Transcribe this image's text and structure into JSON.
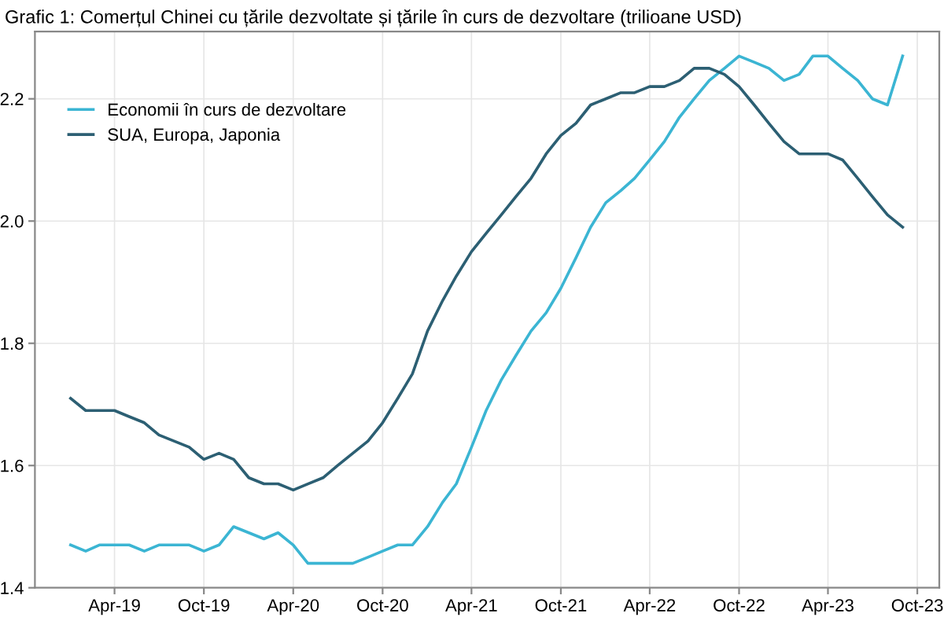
{
  "chart_data": {
    "type": "line",
    "title": "Grafic 1: Comerțul Chinei cu țările dezvoltate și țările în curs de dezvoltare (trilioane USD)",
    "x": [
      "2019-01",
      "2019-02",
      "2019-03",
      "2019-04",
      "2019-05",
      "2019-06",
      "2019-07",
      "2019-08",
      "2019-09",
      "2019-10",
      "2019-11",
      "2019-12",
      "2020-01",
      "2020-02",
      "2020-03",
      "2020-04",
      "2020-05",
      "2020-06",
      "2020-07",
      "2020-08",
      "2020-09",
      "2020-10",
      "2020-11",
      "2020-12",
      "2021-01",
      "2021-02",
      "2021-03",
      "2021-04",
      "2021-05",
      "2021-06",
      "2021-07",
      "2021-08",
      "2021-09",
      "2021-10",
      "2021-11",
      "2021-12",
      "2022-01",
      "2022-02",
      "2022-03",
      "2022-04",
      "2022-05",
      "2022-06",
      "2022-07",
      "2022-08",
      "2022-09",
      "2022-10",
      "2022-11",
      "2022-12",
      "2023-01",
      "2023-02",
      "2023-03",
      "2023-04",
      "2023-05",
      "2023-06",
      "2023-07",
      "2023-08",
      "2023-09"
    ],
    "series": [
      {
        "name": "Economii în curs de dezvoltare",
        "color": "#3bb5d3",
        "values": [
          1.47,
          1.46,
          1.47,
          1.47,
          1.47,
          1.46,
          1.47,
          1.47,
          1.47,
          1.46,
          1.47,
          1.5,
          1.49,
          1.48,
          1.49,
          1.47,
          1.44,
          1.44,
          1.44,
          1.44,
          1.45,
          1.46,
          1.47,
          1.47,
          1.5,
          1.54,
          1.57,
          1.63,
          1.69,
          1.74,
          1.78,
          1.82,
          1.85,
          1.89,
          1.94,
          1.99,
          2.03,
          2.05,
          2.07,
          2.1,
          2.13,
          2.17,
          2.2,
          2.23,
          2.25,
          2.27,
          2.26,
          2.25,
          2.23,
          2.24,
          2.27,
          2.27,
          2.25,
          2.23,
          2.2,
          2.19,
          2.27
        ]
      },
      {
        "name": "SUA, Europa, Japonia",
        "color": "#2c5f73",
        "values": [
          1.71,
          1.69,
          1.69,
          1.69,
          1.68,
          1.67,
          1.65,
          1.64,
          1.63,
          1.61,
          1.62,
          1.61,
          1.58,
          1.57,
          1.57,
          1.56,
          1.57,
          1.58,
          1.6,
          1.62,
          1.64,
          1.67,
          1.71,
          1.75,
          1.82,
          1.87,
          1.91,
          1.95,
          1.98,
          2.01,
          2.04,
          2.07,
          2.11,
          2.14,
          2.16,
          2.19,
          2.2,
          2.21,
          2.21,
          2.22,
          2.22,
          2.23,
          2.25,
          2.25,
          2.24,
          2.22,
          2.19,
          2.16,
          2.13,
          2.11,
          2.11,
          2.11,
          2.1,
          2.07,
          2.04,
          2.01,
          1.99
        ]
      }
    ],
    "xlim": [
      "2018-10-20",
      "2023-11-15"
    ],
    "xticks": [
      {
        "value": "2019-04-01",
        "label": "Apr-19"
      },
      {
        "value": "2019-10-01",
        "label": "Oct-19"
      },
      {
        "value": "2020-04-01",
        "label": "Apr-20"
      },
      {
        "value": "2020-10-01",
        "label": "Oct-20"
      },
      {
        "value": "2021-04-01",
        "label": "Apr-21"
      },
      {
        "value": "2021-10-01",
        "label": "Oct-21"
      },
      {
        "value": "2022-04-01",
        "label": "Apr-22"
      },
      {
        "value": "2022-10-01",
        "label": "Oct-22"
      },
      {
        "value": "2023-04-01",
        "label": "Apr-23"
      },
      {
        "value": "2023-10-01",
        "label": "Oct-23"
      }
    ],
    "ylim": [
      1.4,
      2.31
    ],
    "yticks": [
      {
        "value": 1.4,
        "label": "1.4"
      },
      {
        "value": 1.6,
        "label": "1.6"
      },
      {
        "value": 1.8,
        "label": "1.8"
      },
      {
        "value": 2.0,
        "label": "2.0"
      },
      {
        "value": 2.2,
        "label": "2.2"
      }
    ],
    "grid": true,
    "legend": "top left",
    "line_style": "solid",
    "marker": "none"
  }
}
